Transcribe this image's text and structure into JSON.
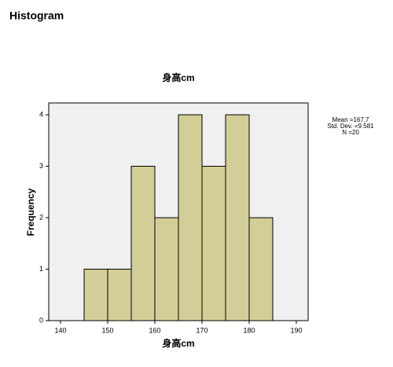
{
  "header": {
    "title": "Histogram"
  },
  "chart_data": {
    "type": "histogram",
    "title": "身高cm",
    "xlabel": "身高cm",
    "ylabel": "Frequency",
    "bins": [
      145,
      150,
      155,
      160,
      165,
      170,
      175,
      180,
      185
    ],
    "counts": [
      1,
      1,
      3,
      2,
      4,
      3,
      4,
      2
    ],
    "color": "#d3ce97",
    "xlim": [
      137.5,
      192.5
    ],
    "xticks": [
      140,
      150,
      160,
      170,
      180,
      190
    ],
    "ylim": [
      0,
      4.23
    ],
    "yticks": [
      0,
      1,
      2,
      3,
      4
    ],
    "annotations": [
      "Mean =167.7",
      "Std. Dev. =9.581",
      "N =20"
    ]
  }
}
